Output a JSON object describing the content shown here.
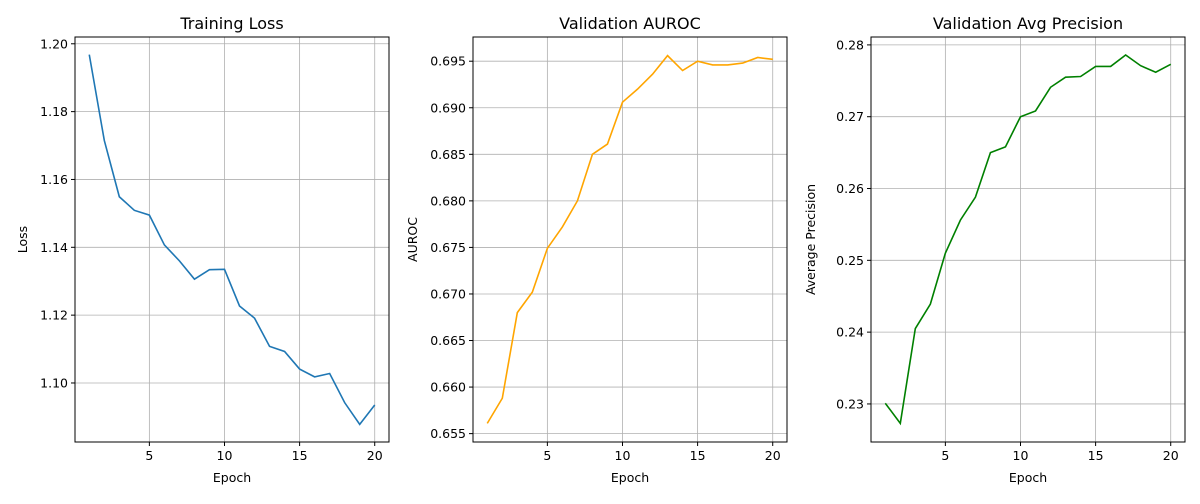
{
  "chart_data": [
    {
      "type": "line",
      "title": "Training Loss",
      "xlabel": "Epoch",
      "ylabel": "Loss",
      "color": "#1f77b4",
      "x": [
        1,
        2,
        3,
        4,
        5,
        6,
        7,
        8,
        9,
        10,
        11,
        12,
        13,
        14,
        15,
        16,
        17,
        18,
        19,
        20
      ],
      "y": [
        1.1968,
        1.1715,
        1.1549,
        1.1509,
        1.1495,
        1.1407,
        1.136,
        1.1306,
        1.1334,
        1.1335,
        1.1227,
        1.1191,
        1.1108,
        1.1093,
        1.1041,
        1.1018,
        1.1028,
        1.0942,
        1.0878,
        1.0935
      ],
      "xlim": [
        0.05,
        20.95
      ],
      "ylim": [
        1.0826,
        1.202
      ],
      "xticks": [
        5,
        10,
        15,
        20
      ],
      "xticklabels": [
        "5",
        "10",
        "15",
        "20"
      ],
      "yticks": [
        1.1,
        1.12,
        1.14,
        1.16,
        1.18,
        1.2
      ],
      "yticklabels": [
        "1.10",
        "1.12",
        "1.14",
        "1.16",
        "1.18",
        "1.20"
      ],
      "grid": true
    },
    {
      "type": "line",
      "title": "Validation AUROC",
      "xlabel": "Epoch",
      "ylabel": "AUROC",
      "color": "#ffa500",
      "x": [
        1,
        2,
        3,
        4,
        5,
        6,
        7,
        8,
        9,
        10,
        11,
        12,
        13,
        14,
        15,
        16,
        17,
        18,
        19,
        20
      ],
      "y": [
        0.6561,
        0.6588,
        0.668,
        0.6702,
        0.6749,
        0.6772,
        0.68,
        0.685,
        0.6861,
        0.6906,
        0.692,
        0.6936,
        0.6956,
        0.694,
        0.695,
        0.6946,
        0.6946,
        0.6948,
        0.6954,
        0.6952
      ],
      "xlim": [
        0.05,
        20.95
      ],
      "ylim": [
        0.6541,
        0.6976
      ],
      "xticks": [
        5,
        10,
        15,
        20
      ],
      "xticklabels": [
        "5",
        "10",
        "15",
        "20"
      ],
      "yticks": [
        0.655,
        0.66,
        0.665,
        0.67,
        0.675,
        0.68,
        0.685,
        0.69,
        0.695
      ],
      "yticklabels": [
        "0.655",
        "0.660",
        "0.665",
        "0.670",
        "0.675",
        "0.680",
        "0.685",
        "0.690",
        "0.695"
      ],
      "grid": true
    },
    {
      "type": "line",
      "title": "Validation Avg Precision",
      "xlabel": "Epoch",
      "ylabel": "Average Precision",
      "color": "#008000",
      "x": [
        1,
        2,
        3,
        4,
        5,
        6,
        7,
        8,
        9,
        10,
        11,
        12,
        13,
        14,
        15,
        16,
        17,
        18,
        19,
        20
      ],
      "y": [
        0.2301,
        0.2273,
        0.2405,
        0.2439,
        0.251,
        0.2556,
        0.2588,
        0.265,
        0.2658,
        0.27,
        0.2708,
        0.2741,
        0.2755,
        0.2756,
        0.277,
        0.277,
        0.2786,
        0.2771,
        0.2762,
        0.2773
      ],
      "xlim": [
        0.05,
        20.95
      ],
      "ylim": [
        0.2247,
        0.2811
      ],
      "xticks": [
        5,
        10,
        15,
        20
      ],
      "xticklabels": [
        "5",
        "10",
        "15",
        "20"
      ],
      "yticks": [
        0.23,
        0.24,
        0.25,
        0.26,
        0.27,
        0.28
      ],
      "yticklabels": [
        "0.23",
        "0.24",
        "0.25",
        "0.26",
        "0.27",
        "0.28"
      ],
      "grid": true
    }
  ]
}
